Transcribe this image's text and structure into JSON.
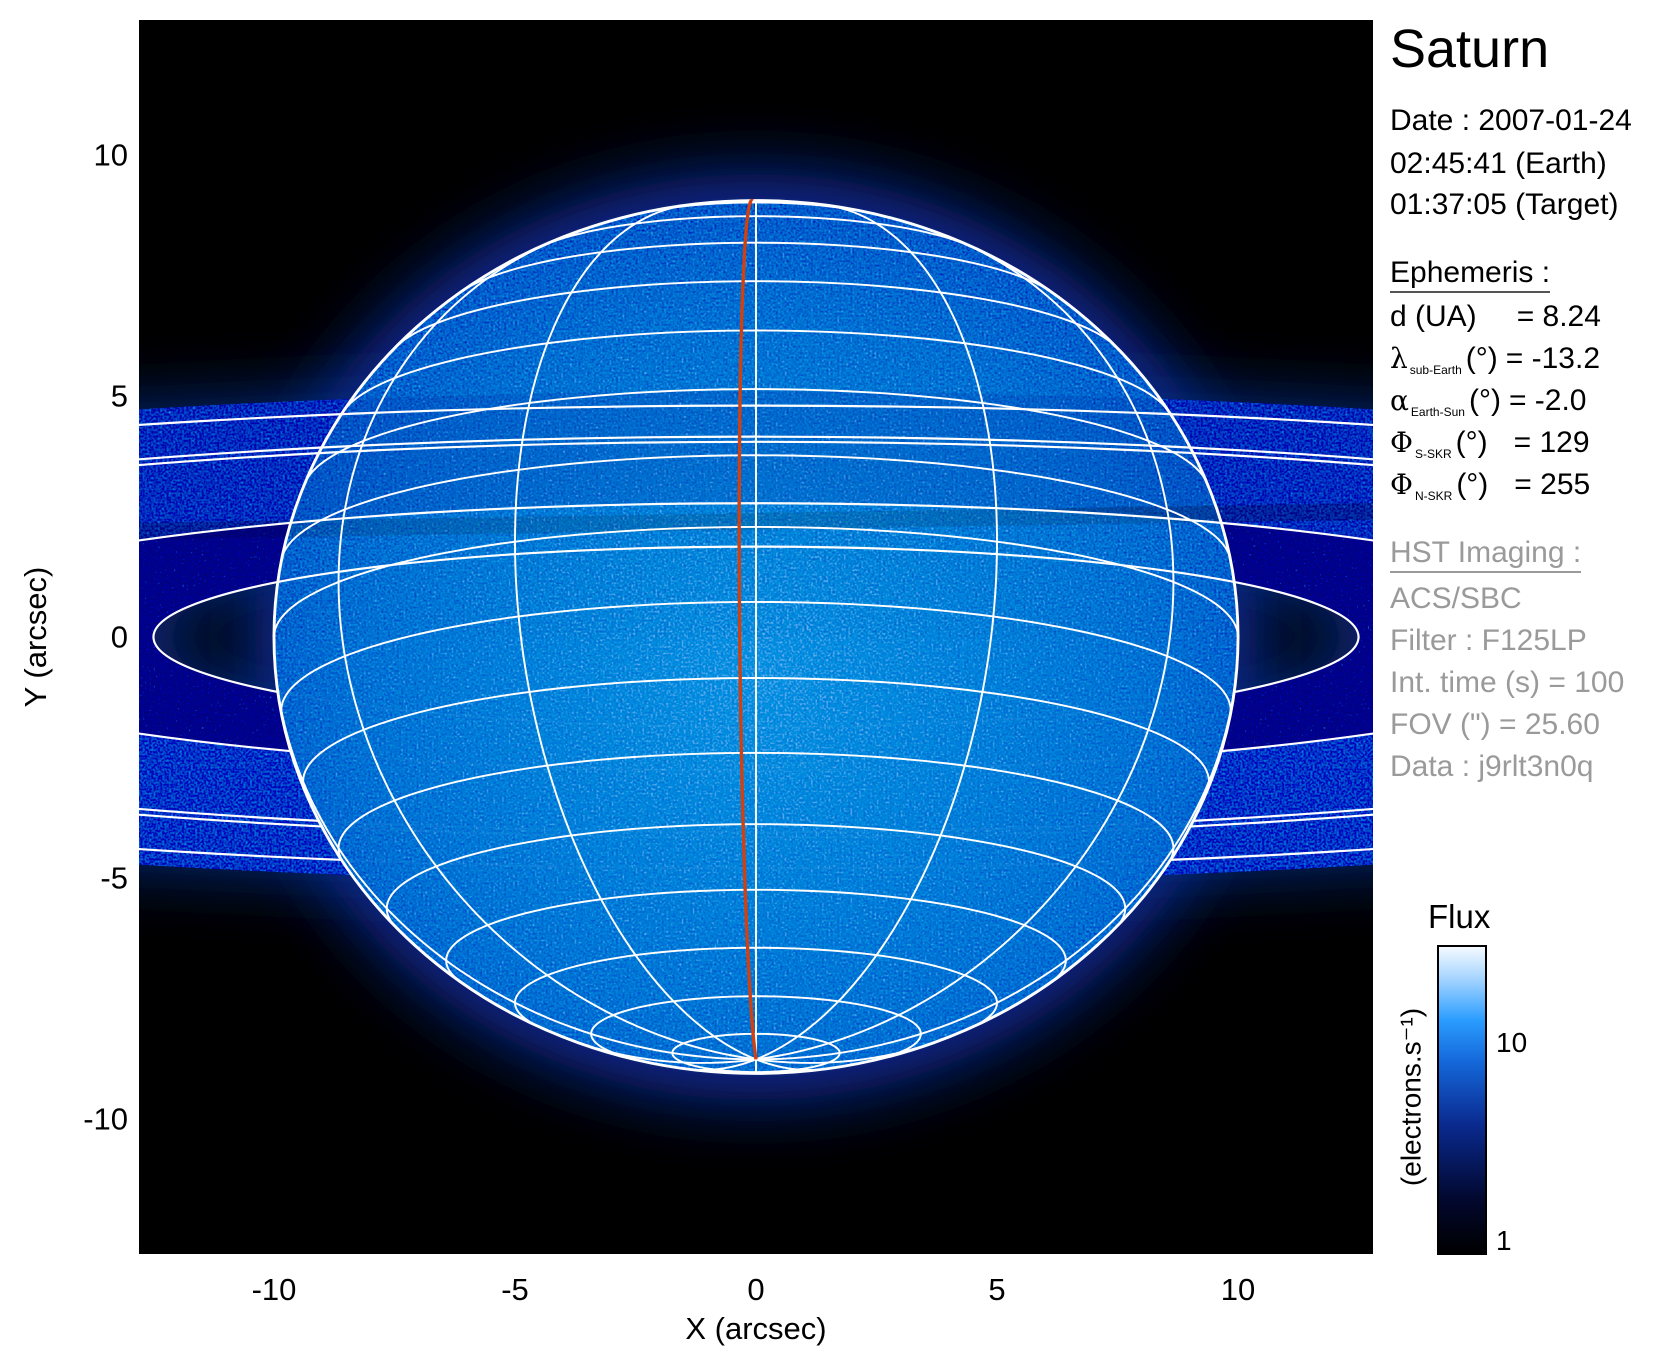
{
  "side_panel": {
    "title": "Saturn",
    "date_line": "Date : 2007-01-24",
    "earth_time": "02:45:41 (Earth)",
    "target_time": "01:37:05 (Target)",
    "ephemeris_header": "Ephemeris :",
    "ephemeris": [
      {
        "symbol": "d (UA)",
        "sub": "",
        "unit": "",
        "value": "= 8.24"
      },
      {
        "symbol": "λ",
        "sub": "sub-Earth",
        "unit": "(°)",
        "value": "= -13.2"
      },
      {
        "symbol": "α",
        "sub": "Earth-Sun",
        "unit": "(°)",
        "value": "= -2.0"
      },
      {
        "symbol": "Φ",
        "sub": "S-SKR",
        "unit": "(°)",
        "value": "= 129"
      },
      {
        "symbol": "Φ",
        "sub": "N-SKR",
        "unit": "(°)",
        "value": "= 255"
      }
    ],
    "imaging_header": "HST Imaging :",
    "imaging": [
      "ACS/SBC",
      "Filter : F125LP",
      "Int. time (s) = 100",
      "FOV (\") = 25.60",
      "Data : j9rlt3n0q"
    ]
  },
  "chart_data": {
    "type": "heatmap",
    "description_kind": "planetary image with projected latitude/longitude grid",
    "xlabel": "X (arcsec)",
    "ylabel": "Y (arcsec)",
    "xlim": [
      -12.8,
      12.8
    ],
    "ylim": [
      -12.8,
      12.8
    ],
    "xticks": [
      "-10",
      "-5",
      "0",
      "5",
      "10"
    ],
    "yticks": [
      "10",
      "5",
      "0",
      "-5",
      "-10"
    ],
    "xtick_values": [
      -10,
      -5,
      0,
      5,
      10
    ],
    "ytick_values": [
      10,
      5,
      0,
      -5,
      -10
    ],
    "grid": {
      "latitude_step_deg": 10,
      "longitude_step_deg": 30,
      "sub_earth_latitude_deg": -13.2,
      "color": "#ffffff"
    },
    "highlight_meridian_color": "#d04010",
    "colorbar": {
      "title": "Flux",
      "unit": "(electrons.s⁻¹)",
      "scale": "log",
      "range": [
        1,
        30
      ],
      "ticks": [
        "10",
        "1"
      ],
      "tick_values": [
        10,
        1
      ]
    },
    "colors": {
      "background": "#000000",
      "planet": "#4f9de9",
      "rings": "#2a7fe0",
      "grid": "#ffffff"
    }
  }
}
